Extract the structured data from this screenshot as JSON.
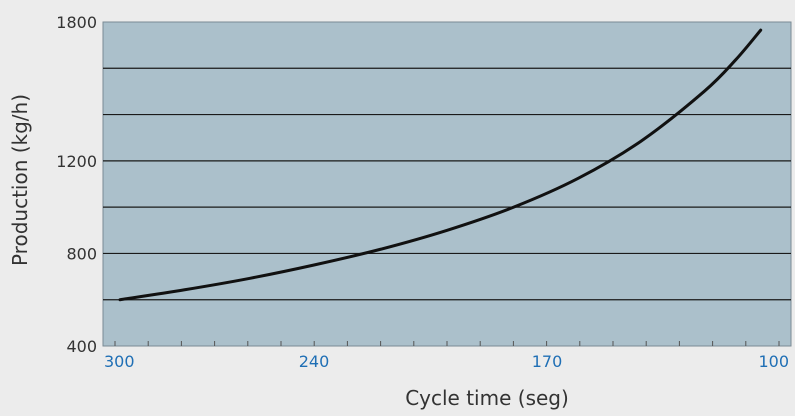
{
  "chart_data": {
    "type": "line",
    "xlabel": "Cycle time (seg)",
    "ylabel": "Production (kg/h)",
    "x_ticks": [
      "300",
      "240",
      "170",
      "100"
    ],
    "y_ticks": [
      "1800",
      "1200",
      "800",
      "400"
    ],
    "y_tick_values": [
      1800,
      1200,
      800,
      400
    ],
    "ylim": [
      400,
      1800
    ],
    "grid": true,
    "series": [
      {
        "x": [
          300,
          280,
          260,
          240,
          220,
          200,
          180,
          160,
          140,
          120,
          110,
          102
        ],
        "y": [
          600,
          643,
          692,
          750,
          818,
          900,
          1000,
          1125,
          1286,
          1500,
          1636,
          1765
        ]
      }
    ]
  },
  "colors": {
    "page_background": "#ececec",
    "plot_background": "#abc0cb",
    "grid": "#1a1a1a",
    "line": "#111111",
    "x_tick_labels": "#1f6fb5",
    "text": "#333333"
  }
}
